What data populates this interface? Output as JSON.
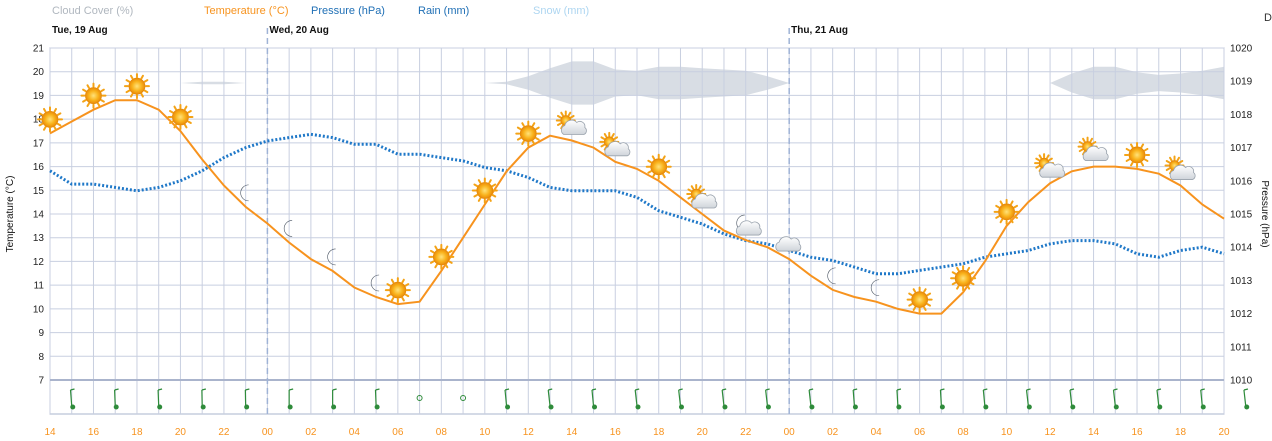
{
  "legend": {
    "cloud": {
      "label": "Cloud Cover (%)",
      "color": "#b0b7bf"
    },
    "temperature": {
      "label": "Temperature (°C)",
      "color": "#f7931e"
    },
    "pressure": {
      "label": "Pressure (hPa)",
      "color": "#1f6fb5"
    },
    "rain": {
      "label": "Rain (mm)",
      "color": "#1f6fb5"
    },
    "snow": {
      "label": "Snow (mm)",
      "color": "#aed6f1"
    }
  },
  "corner_glyph": "D",
  "days": [
    "Tue, 19 Aug",
    "Wed, 20 Aug",
    "Thu, 21 Aug"
  ],
  "colors": {
    "grid": "#c8cfe0",
    "axis": "#aab4cc",
    "temperature": "#f7931e",
    "pressure": "#1f78c8",
    "cloud": "#d8dde4",
    "wind": "#2e8b3a",
    "day_divider": "#9fb3d6"
  },
  "chart_data": {
    "type": "line",
    "x_hours": [
      "14",
      "15",
      "16",
      "17",
      "18",
      "19",
      "20",
      "21",
      "22",
      "23",
      "00",
      "01",
      "02",
      "03",
      "04",
      "05",
      "06",
      "07",
      "08",
      "09",
      "10",
      "11",
      "12",
      "13",
      "14",
      "15",
      "16",
      "17",
      "18",
      "19",
      "20",
      "21",
      "22",
      "23",
      "00",
      "01",
      "02",
      "03",
      "04",
      "05",
      "06",
      "07",
      "08",
      "09",
      "10",
      "11",
      "12",
      "13",
      "14",
      "15",
      "16",
      "17",
      "18",
      "19",
      "20"
    ],
    "x_tick_labels": [
      "14",
      "16",
      "18",
      "20",
      "22",
      "00",
      "02",
      "04",
      "06",
      "08",
      "10",
      "12",
      "14",
      "16",
      "18",
      "20",
      "22",
      "00",
      "02",
      "04",
      "06",
      "08",
      "10",
      "12",
      "14",
      "16",
      "18",
      "20"
    ],
    "y_left": {
      "label": "Temperature (°C)",
      "min": 7,
      "max": 21,
      "ticks": [
        7,
        8,
        9,
        10,
        11,
        12,
        13,
        14,
        15,
        16,
        17,
        18,
        19,
        20,
        21
      ]
    },
    "y_right": {
      "label": "Pressure (hPa)",
      "min": 1010,
      "max": 1020,
      "ticks": [
        1010,
        1011,
        1012,
        1013,
        1014,
        1015,
        1016,
        1017,
        1018,
        1019,
        1020
      ]
    },
    "series": [
      {
        "name": "Temperature (°C)",
        "axis": "left",
        "values": [
          17.4,
          17.9,
          18.4,
          18.8,
          18.8,
          18.4,
          17.5,
          16.3,
          15.2,
          14.3,
          13.6,
          12.8,
          12.1,
          11.6,
          10.9,
          10.5,
          10.2,
          10.3,
          11.6,
          13.0,
          14.4,
          15.8,
          16.8,
          17.3,
          17.1,
          16.8,
          16.2,
          15.9,
          15.4,
          14.7,
          14.0,
          13.3,
          12.9,
          12.6,
          12.1,
          11.4,
          10.8,
          10.5,
          10.3,
          10.0,
          9.8,
          9.8,
          10.7,
          12.0,
          13.5,
          14.5,
          15.3,
          15.8,
          16.0,
          16.0,
          15.9,
          15.7,
          15.2,
          14.4,
          13.8
        ]
      },
      {
        "name": "Pressure (hPa)",
        "axis": "right",
        "values": [
          1016.3,
          1015.9,
          1015.9,
          1015.8,
          1015.7,
          1015.8,
          1016.0,
          1016.3,
          1016.7,
          1017.0,
          1017.2,
          1017.3,
          1017.4,
          1017.3,
          1017.1,
          1017.1,
          1016.8,
          1016.8,
          1016.7,
          1016.6,
          1016.4,
          1016.3,
          1016.1,
          1015.8,
          1015.7,
          1015.7,
          1015.7,
          1015.5,
          1015.1,
          1014.9,
          1014.7,
          1014.4,
          1014.2,
          1014.1,
          1013.9,
          1013.7,
          1013.6,
          1013.4,
          1013.2,
          1013.2,
          1013.3,
          1013.4,
          1013.5,
          1013.7,
          1013.8,
          1013.9,
          1014.1,
          1014.2,
          1014.2,
          1014.1,
          1013.8,
          1013.7,
          1013.9,
          1014.0,
          1013.8
        ]
      }
    ],
    "cloud_cover": [
      0,
      0,
      0,
      0,
      0,
      0,
      0,
      5,
      5,
      0,
      0,
      0,
      0,
      0,
      0,
      0,
      0,
      0,
      0,
      0,
      0,
      5,
      25,
      55,
      80,
      80,
      50,
      45,
      60,
      60,
      55,
      50,
      45,
      25,
      0,
      0,
      0,
      0,
      0,
      0,
      0,
      0,
      0,
      0,
      0,
      0,
      0,
      35,
      60,
      60,
      40,
      30,
      35,
      45,
      60
    ],
    "weather_icons": [
      "sun",
      "sun",
      "sun",
      "sun",
      "sun",
      "sun",
      "sun",
      "moon",
      "moon",
      "moon",
      "moon",
      "moon",
      "moon",
      "moon",
      "moon",
      "moon",
      "sun",
      "sun",
      "sun",
      "sun",
      "sun",
      "sun",
      "sun",
      "sun",
      "sun-cloud",
      "sun-cloud",
      "sun",
      "sun",
      "sun-cloud",
      "sun-cloud",
      "moon-cloud",
      "moon-cloud",
      "cloud",
      "moon",
      "moon",
      "moon",
      "moon",
      "sun",
      "sun",
      "sun",
      "sun",
      "sun",
      "sun",
      "sun",
      "sun",
      "sun-cloud",
      "sun-cloud",
      "sun-cloud",
      "sun-cloud",
      "sun",
      "sun-cloud",
      "sun-cloud",
      "sun",
      "sun",
      "sun"
    ],
    "weather_icon_hours": [
      14,
      16,
      18,
      20,
      23,
      1,
      3,
      5,
      7,
      9,
      11,
      13,
      14,
      16,
      18,
      20,
      22,
      0,
      2,
      4,
      6,
      8,
      10,
      12,
      14,
      16,
      18
    ],
    "weather_icon_types": [
      "sun",
      "sun",
      "sun",
      "sun",
      "moon",
      "moon",
      "moon",
      "moon",
      "sun",
      "sun",
      "sun",
      "sun",
      "sun-cloud",
      "sun-cloud",
      "sun",
      "sun-cloud",
      "moon-cloud",
      "cloud",
      "moon",
      "moon",
      "sun",
      "sun",
      "sun",
      "sun-cloud",
      "sun-cloud",
      "sun",
      "sun-cloud"
    ],
    "wind_directions_deg": [
      160,
      170,
      170,
      175,
      175,
      180,
      180,
      170,
      "calm",
      "calm",
      155,
      150,
      155,
      150,
      150,
      150,
      150,
      150,
      160,
      165,
      165,
      155,
      150,
      150,
      150,
      150,
      155,
      150
    ]
  }
}
